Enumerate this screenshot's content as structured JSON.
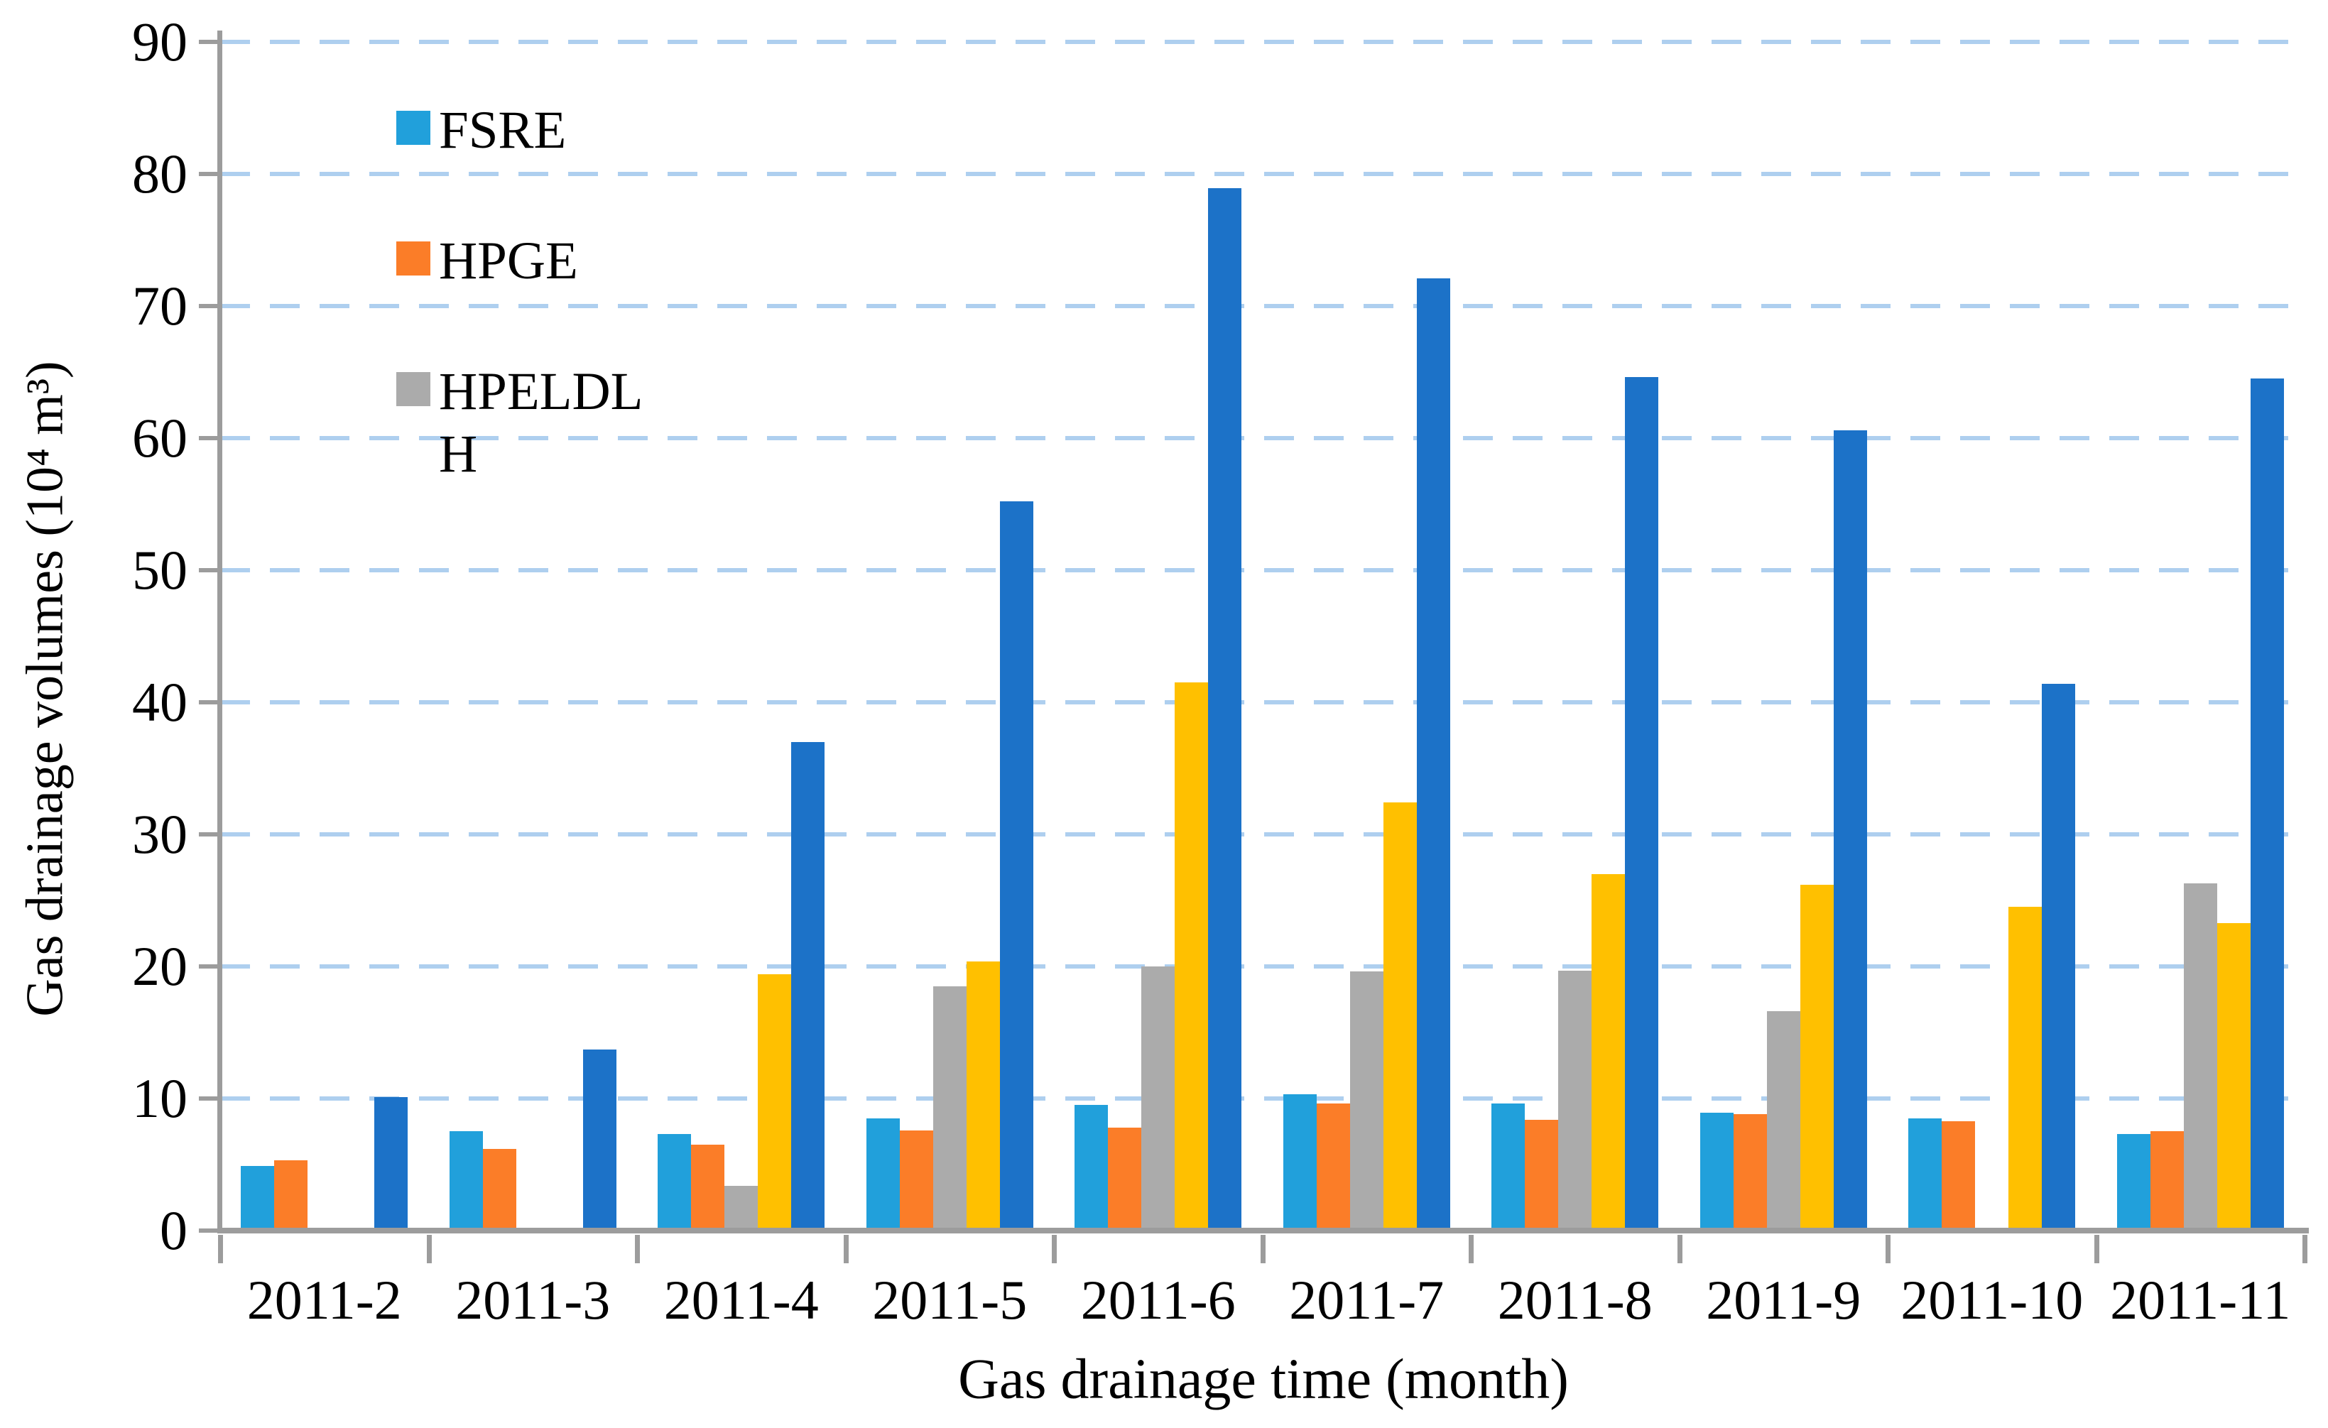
{
  "chart_data": {
    "type": "bar",
    "title": "",
    "xlabel": "Gas drainage time (month)",
    "ylabel": "Gas drainage volumes (10⁴ m³)",
    "categories": [
      "2011-2",
      "2011-3",
      "2011-4",
      "2011-5",
      "2011-6",
      "2011-7",
      "2011-8",
      "2011-9",
      "2011-10",
      "2011-11"
    ],
    "series": [
      {
        "id": "fsre",
        "name": "FSRE",
        "color": "#21A0DB",
        "in_legend": true,
        "values": [
          4.9,
          7.5,
          7.3,
          8.5,
          9.5,
          10.3,
          9.6,
          8.9,
          8.5,
          7.3
        ]
      },
      {
        "id": "hpge",
        "name": "HPGE",
        "color": "#FB7D28",
        "in_legend": true,
        "values": [
          5.3,
          6.2,
          6.5,
          7.6,
          7.8,
          9.6,
          8.4,
          8.8,
          8.3,
          7.5
        ]
      },
      {
        "id": "hpeldlh",
        "name": "HPELDLH",
        "color": "#ABABAB",
        "in_legend": true,
        "values": [
          0,
          0,
          3.4,
          18.5,
          20.0,
          19.6,
          19.7,
          16.6,
          0,
          26.3
        ]
      },
      {
        "id": "series-4",
        "name": "",
        "color": "#FFC000",
        "in_legend": false,
        "values": [
          0,
          0,
          19.4,
          20.4,
          41.5,
          32.4,
          27.0,
          26.2,
          24.5,
          23.3
        ]
      },
      {
        "id": "series-5",
        "name": "",
        "color": "#1C72C8",
        "in_legend": false,
        "values": [
          10.1,
          13.7,
          37.0,
          55.2,
          78.9,
          72.1,
          64.6,
          60.6,
          41.4,
          64.5
        ]
      }
    ],
    "ylim": [
      0,
      90
    ],
    "ytick_step": 10,
    "y_tick_labels": [
      "0",
      "10",
      "20",
      "30",
      "40",
      "50",
      "60",
      "70",
      "80",
      "90"
    ],
    "grid": "horizontal dashed",
    "gridline_color": "#AECFEF",
    "axis_color": "#9C9C9C",
    "legend_position": "upper-left-inside"
  },
  "legend": {
    "items": [
      {
        "label": "FSRE",
        "color": "#21A0DB"
      },
      {
        "label": "HPGE",
        "color": "#FB7D28"
      },
      {
        "label": "HPELDL H",
        "color": "#ABABAB"
      }
    ]
  }
}
